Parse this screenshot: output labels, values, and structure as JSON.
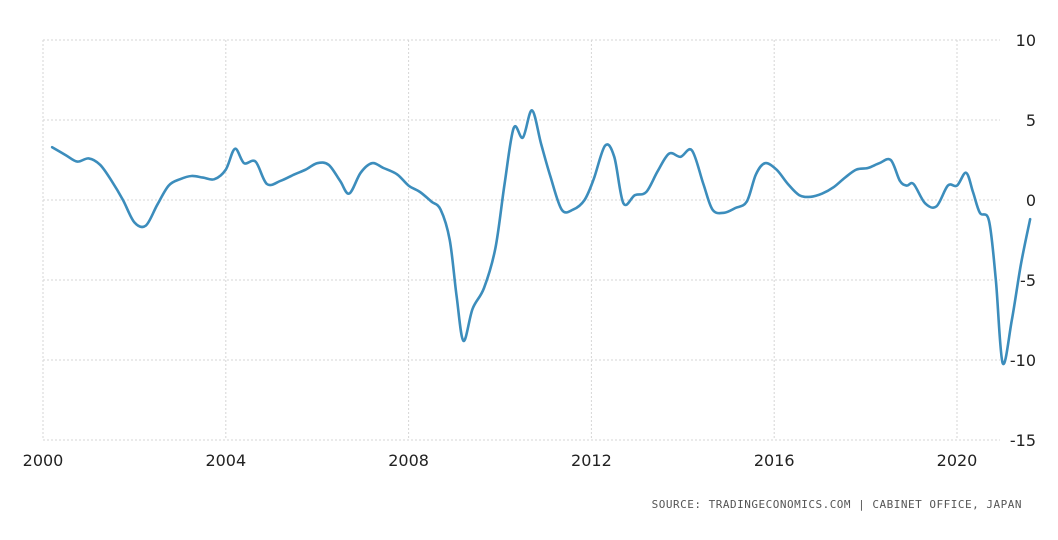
{
  "chart_data": {
    "type": "line",
    "title": "",
    "xlabel": "",
    "ylabel": "",
    "xlim": [
      2000,
      2021.2
    ],
    "ylim": [
      -15,
      10
    ],
    "y_ticks": [
      10,
      5,
      0,
      -5,
      -10,
      -15
    ],
    "y_tick_labels": [
      "10",
      "5",
      "0",
      "-5",
      "-10",
      "-15"
    ],
    "x_ticks": [
      2000,
      2004,
      2008,
      2012,
      2016,
      2020
    ],
    "x_tick_labels": [
      "2000",
      "2004",
      "2008",
      "2012",
      "2016",
      "2020"
    ],
    "y_axis_position": "right",
    "grid": true,
    "legend": "none",
    "series": [
      {
        "color": "#3c8dbc",
        "points": [
          [
            2000.2,
            3.3
          ],
          [
            2000.5,
            2.8
          ],
          [
            2000.75,
            2.4
          ],
          [
            2001.0,
            2.6
          ],
          [
            2001.25,
            2.2
          ],
          [
            2001.5,
            1.2
          ],
          [
            2001.75,
            0.0
          ],
          [
            2002.0,
            -1.4
          ],
          [
            2002.25,
            -1.6
          ],
          [
            2002.5,
            -0.3
          ],
          [
            2002.75,
            0.9
          ],
          [
            2003.0,
            1.3
          ],
          [
            2003.25,
            1.5
          ],
          [
            2003.5,
            1.4
          ],
          [
            2003.75,
            1.3
          ],
          [
            2004.0,
            1.9
          ],
          [
            2004.2,
            3.2
          ],
          [
            2004.4,
            2.3
          ],
          [
            2004.65,
            2.4
          ],
          [
            2004.9,
            1.0
          ],
          [
            2005.2,
            1.2
          ],
          [
            2005.5,
            1.6
          ],
          [
            2005.75,
            1.9
          ],
          [
            2006.0,
            2.3
          ],
          [
            2006.25,
            2.2
          ],
          [
            2006.5,
            1.2
          ],
          [
            2006.7,
            0.4
          ],
          [
            2006.95,
            1.7
          ],
          [
            2007.2,
            2.3
          ],
          [
            2007.45,
            2.0
          ],
          [
            2007.75,
            1.6
          ],
          [
            2008.0,
            0.9
          ],
          [
            2008.25,
            0.5
          ],
          [
            2008.5,
            -0.1
          ],
          [
            2008.7,
            -0.6
          ],
          [
            2008.9,
            -2.5
          ],
          [
            2009.05,
            -6.0
          ],
          [
            2009.2,
            -8.8
          ],
          [
            2009.4,
            -6.8
          ],
          [
            2009.65,
            -5.5
          ],
          [
            2009.9,
            -3.0
          ],
          [
            2010.1,
            1.0
          ],
          [
            2010.3,
            4.5
          ],
          [
            2010.5,
            3.9
          ],
          [
            2010.7,
            5.6
          ],
          [
            2010.9,
            3.5
          ],
          [
            2011.1,
            1.5
          ],
          [
            2011.35,
            -0.6
          ],
          [
            2011.6,
            -0.6
          ],
          [
            2011.85,
            0.0
          ],
          [
            2012.05,
            1.3
          ],
          [
            2012.3,
            3.4
          ],
          [
            2012.5,
            2.7
          ],
          [
            2012.7,
            -0.2
          ],
          [
            2012.95,
            0.3
          ],
          [
            2013.2,
            0.5
          ],
          [
            2013.45,
            1.8
          ],
          [
            2013.7,
            2.9
          ],
          [
            2013.95,
            2.7
          ],
          [
            2014.2,
            3.1
          ],
          [
            2014.45,
            1.0
          ],
          [
            2014.65,
            -0.6
          ],
          [
            2014.9,
            -0.8
          ],
          [
            2015.15,
            -0.5
          ],
          [
            2015.4,
            -0.1
          ],
          [
            2015.6,
            1.6
          ],
          [
            2015.8,
            2.3
          ],
          [
            2016.05,
            1.9
          ],
          [
            2016.3,
            1.0
          ],
          [
            2016.55,
            0.3
          ],
          [
            2016.8,
            0.2
          ],
          [
            2017.05,
            0.4
          ],
          [
            2017.3,
            0.8
          ],
          [
            2017.55,
            1.4
          ],
          [
            2017.8,
            1.9
          ],
          [
            2018.05,
            2.0
          ],
          [
            2018.3,
            2.3
          ],
          [
            2018.55,
            2.5
          ],
          [
            2018.75,
            1.2
          ],
          [
            2018.9,
            0.9
          ],
          [
            2019.05,
            1.0
          ],
          [
            2019.3,
            -0.2
          ],
          [
            2019.55,
            -0.4
          ],
          [
            2019.8,
            0.9
          ],
          [
            2020.0,
            0.9
          ],
          [
            2020.2,
            1.7
          ],
          [
            2020.35,
            0.5
          ],
          [
            2020.5,
            -0.8
          ],
          [
            2020.7,
            -1.3
          ],
          [
            2020.85,
            -5.0
          ],
          [
            2021.0,
            -10.2
          ],
          [
            2021.2,
            -7.5
          ],
          [
            2021.4,
            -4.0
          ],
          [
            2021.6,
            -1.2
          ]
        ]
      }
    ]
  },
  "footer": {
    "source": "SOURCE: TRADINGECONOMICS.COM | CABINET OFFICE, JAPAN"
  }
}
